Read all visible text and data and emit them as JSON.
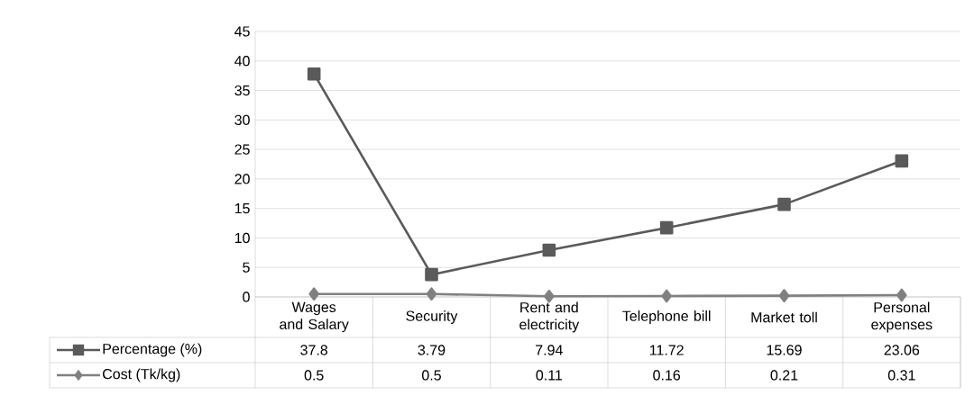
{
  "chart_data": {
    "type": "line",
    "categories": [
      "Wages and Salary",
      "Security",
      "Rent and electricity",
      "Telephone bill",
      "Market toll",
      "Personal expenses"
    ],
    "series": [
      {
        "name": "Percentage (%)",
        "color": "#5a5a5a",
        "marker": "square",
        "values": [
          37.8,
          3.79,
          7.94,
          11.72,
          15.69,
          23.06
        ]
      },
      {
        "name": "Cost (Tk/kg)",
        "color": "#808080",
        "marker": "diamond",
        "values": [
          0.5,
          0.5,
          0.11,
          0.16,
          0.21,
          0.31
        ]
      }
    ],
    "ylim": [
      0,
      45
    ],
    "yticks": [
      0,
      5,
      10,
      15,
      20,
      25,
      30,
      35,
      40,
      45
    ],
    "grid": "y",
    "legend": "bottom",
    "data_labels": true,
    "line_style": "solid"
  }
}
